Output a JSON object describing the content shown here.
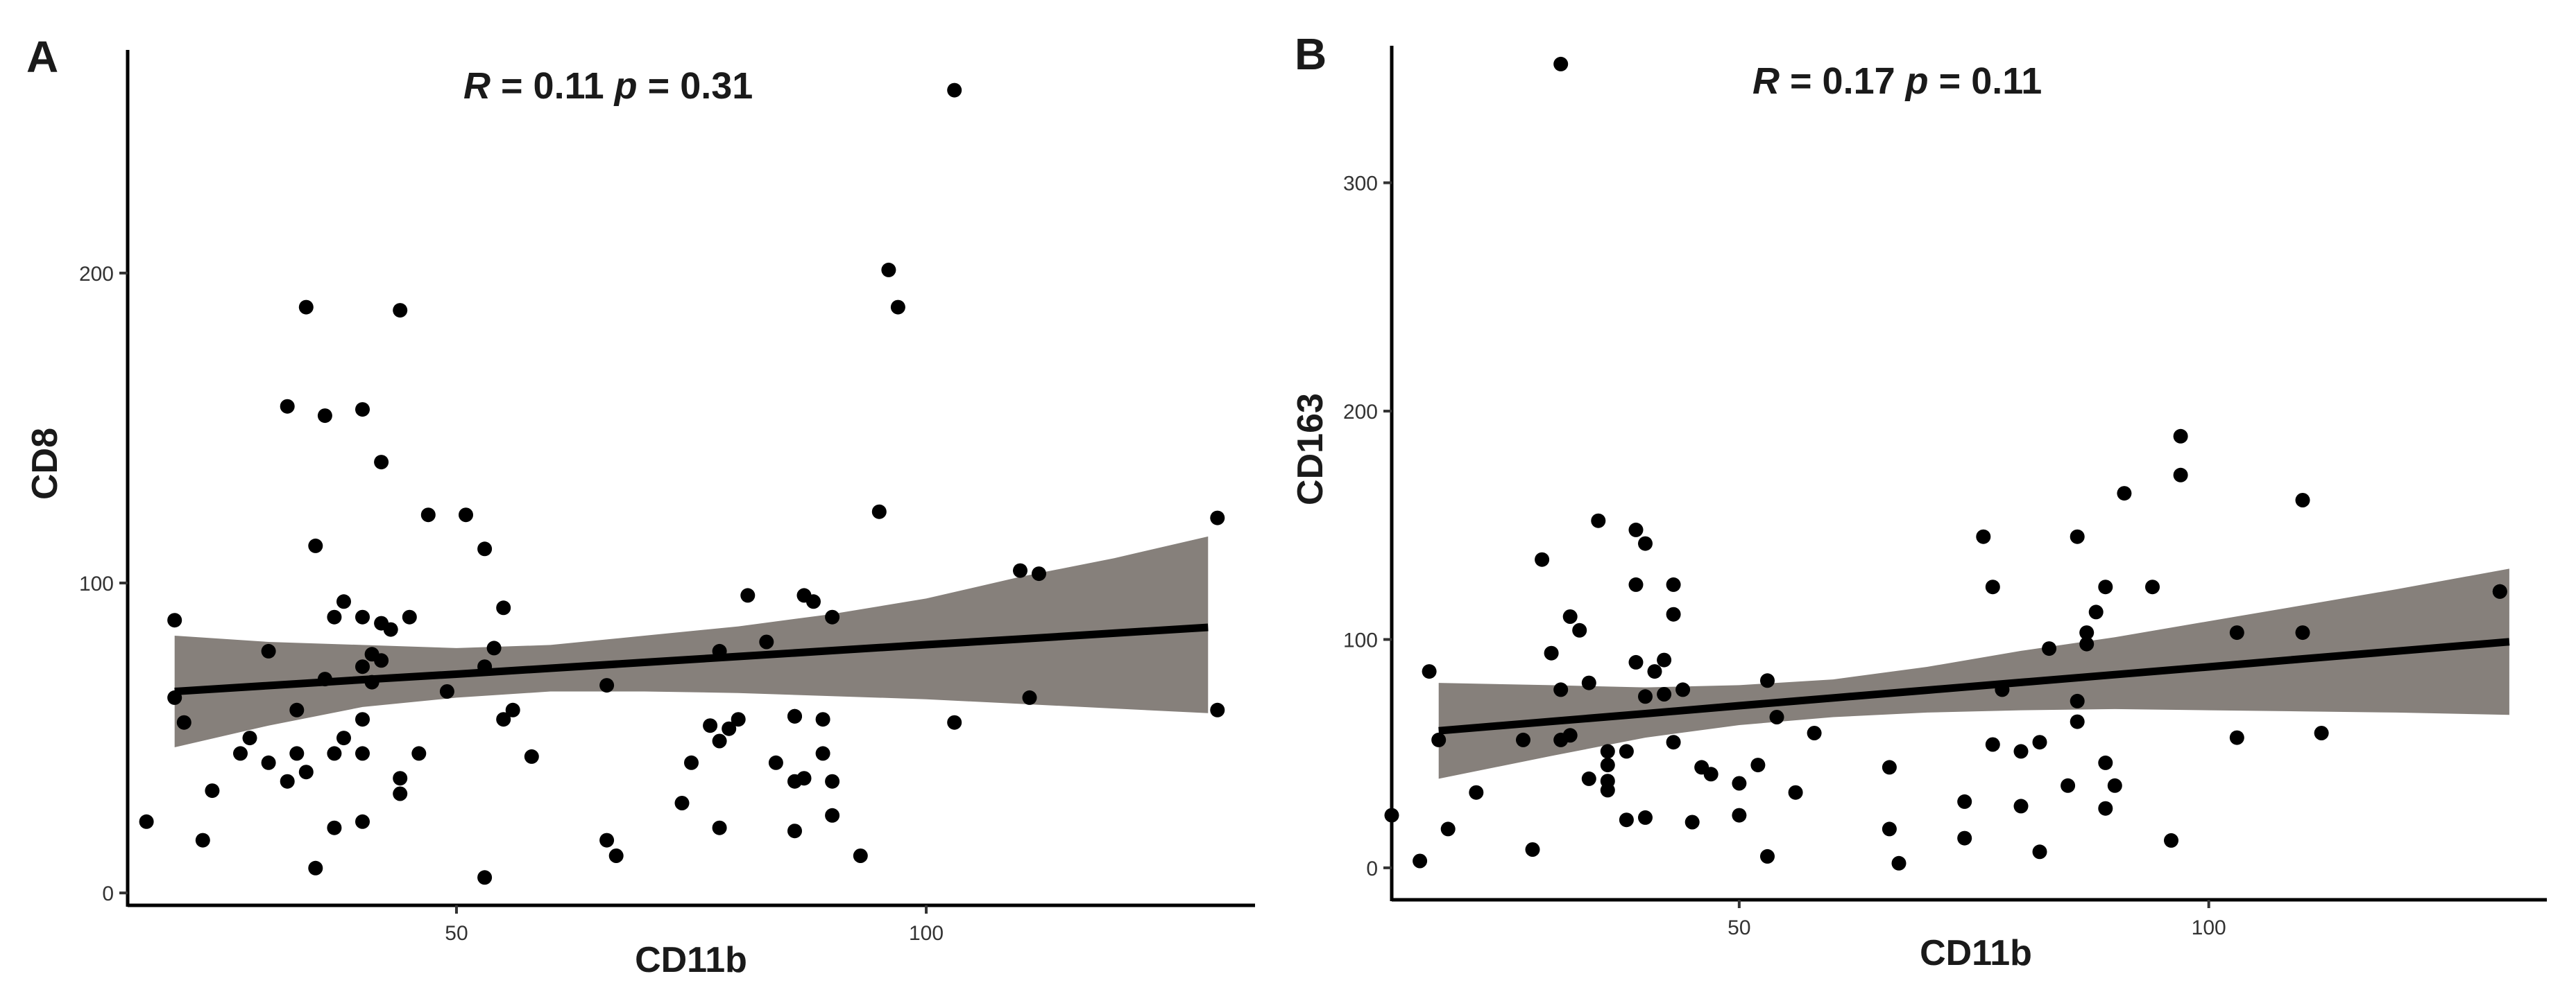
{
  "colors": {
    "band": "#86807b",
    "line": "#000000",
    "point": "#000000"
  },
  "chart_data": [
    {
      "type": "scatter",
      "panel_label": "A",
      "title": "",
      "annotation": {
        "r_label": "R",
        "r_text": " = 0.11 ",
        "p_label": "p",
        "p_text": " = 0.31"
      },
      "xlabel": "CD11b",
      "ylabel": "CD8",
      "xlim": [
        15,
        135
      ],
      "ylim": [
        -4,
        272
      ],
      "x_ticks": [
        50,
        100
      ],
      "y_ticks": [
        0,
        100,
        200
      ],
      "regression": {
        "x": [
          20,
          30,
          40,
          50,
          60,
          70,
          80,
          90,
          100,
          110,
          120,
          130
        ],
        "fit": [
          65.0,
          66.9,
          68.8,
          70.6,
          72.5,
          74.4,
          76.3,
          78.2,
          80.1,
          81.9,
          83.8,
          85.7
        ],
        "lower": [
          47,
          54,
          60,
          63,
          65,
          65,
          64.5,
          63.5,
          62.5,
          61,
          59.5,
          58
        ],
        "upper": [
          83,
          81,
          80,
          79,
          80,
          83,
          86,
          90,
          95,
          102,
          108,
          115
        ]
      },
      "x": [
        17,
        20,
        20,
        21,
        23,
        24,
        27,
        28,
        30,
        30,
        32,
        32,
        33,
        33,
        34,
        34,
        35,
        35,
        36,
        36,
        37,
        37,
        37,
        38,
        38,
        40,
        40,
        40,
        40,
        40,
        40,
        41,
        41,
        42,
        42,
        42,
        43,
        44,
        44,
        44,
        45,
        46,
        47,
        49,
        51,
        53,
        53,
        53,
        54,
        55,
        55,
        56,
        58,
        66,
        66,
        67,
        74,
        75,
        77,
        78,
        78,
        78,
        79,
        80,
        81,
        83,
        84,
        86,
        86,
        86,
        86,
        87,
        87,
        88,
        89,
        89,
        90,
        90,
        90,
        93,
        95,
        96,
        97,
        103,
        110,
        111,
        112,
        131
      ],
      "y": [
        23,
        63,
        88,
        55,
        17,
        33,
        45,
        50,
        42,
        78,
        36,
        157,
        59,
        45,
        189,
        39,
        8,
        112,
        154,
        69,
        45,
        89,
        21,
        94,
        50,
        156,
        89,
        73,
        56,
        45,
        23,
        77,
        68,
        139,
        87,
        75,
        85,
        37,
        32,
        188,
        89,
        45,
        122,
        65,
        122,
        111,
        5,
        73,
        79,
        56,
        92,
        59,
        44,
        17,
        67,
        12,
        29,
        42,
        54,
        49,
        78,
        21,
        53,
        56,
        96,
        81,
        42,
        57,
        57,
        36,
        20,
        37,
        96,
        94,
        56,
        45,
        25,
        89,
        36,
        12,
        123,
        201,
        189,
        55,
        104,
        63,
        103,
        59
      ],
      "outliers": [
        {
          "x": 103,
          "y": 259
        },
        {
          "x": 131,
          "y": 121
        }
      ]
    },
    {
      "type": "scatter",
      "panel_label": "B",
      "title": "",
      "annotation": {
        "r_label": "R",
        "r_text": " = 0.17 ",
        "p_label": "p",
        "p_text": " = 0.11"
      },
      "xlabel": "CD11b",
      "ylabel": "CD163",
      "xlim": [
        13,
        136
      ],
      "ylim": [
        -14,
        360
      ],
      "x_ticks": [
        50,
        100
      ],
      "y_ticks": [
        0,
        100,
        200,
        300
      ],
      "regression": {
        "x": [
          18,
          30,
          40,
          50,
          60,
          70,
          80,
          90,
          100,
          110,
          120,
          132
        ],
        "fit": [
          60.0,
          64.1,
          67.5,
          71.0,
          74.4,
          77.8,
          81.2,
          84.6,
          88.0,
          91.5,
          94.9,
          99.0
        ],
        "lower": [
          39,
          49,
          57,
          62.5,
          66,
          68,
          69,
          69.5,
          69,
          68.5,
          68,
          67
        ],
        "upper": [
          81,
          80,
          79,
          80,
          82.5,
          88,
          95,
          101,
          108,
          115,
          122,
          131
        ]
      },
      "x": [
        13,
        16,
        17,
        18,
        19,
        22,
        27,
        28,
        29,
        30,
        31,
        31,
        32,
        32,
        33,
        34,
        34,
        35,
        36,
        36,
        36,
        36,
        38,
        38,
        39,
        39,
        39,
        40,
        40,
        40,
        41,
        42,
        42,
        43,
        43,
        43,
        44,
        45,
        46,
        47,
        50,
        50,
        52,
        53,
        53,
        54,
        56,
        58,
        66,
        66,
        67,
        74,
        74,
        76,
        77,
        77,
        78,
        80,
        80,
        82,
        82,
        83,
        85,
        86,
        86,
        86,
        87,
        87,
        88,
        89,
        89,
        89,
        90,
        91,
        94,
        96,
        97,
        97,
        103,
        103,
        110,
        110,
        112,
        131
      ],
      "y": [
        23,
        3,
        86,
        56,
        17,
        33,
        56,
        8,
        135,
        94,
        78,
        56,
        58,
        110,
        104,
        39,
        81,
        152,
        45,
        51,
        38,
        34,
        51,
        21,
        148,
        90,
        124,
        142,
        22,
        75,
        86,
        91,
        76,
        55,
        111,
        124,
        78,
        20,
        44,
        41,
        23,
        37,
        45,
        5,
        82,
        66,
        33,
        59,
        44,
        17,
        2,
        13,
        29,
        145,
        54,
        123,
        78,
        27,
        51,
        55,
        7,
        96,
        36,
        64,
        73,
        145,
        103,
        98,
        112,
        123,
        26,
        46,
        36,
        164,
        123,
        12,
        172,
        189,
        103,
        57,
        161,
        103,
        59,
        121
      ],
      "outliers": [
        {
          "x": 31,
          "y": 352
        },
        {
          "x": 131,
          "y": 121
        }
      ]
    }
  ]
}
